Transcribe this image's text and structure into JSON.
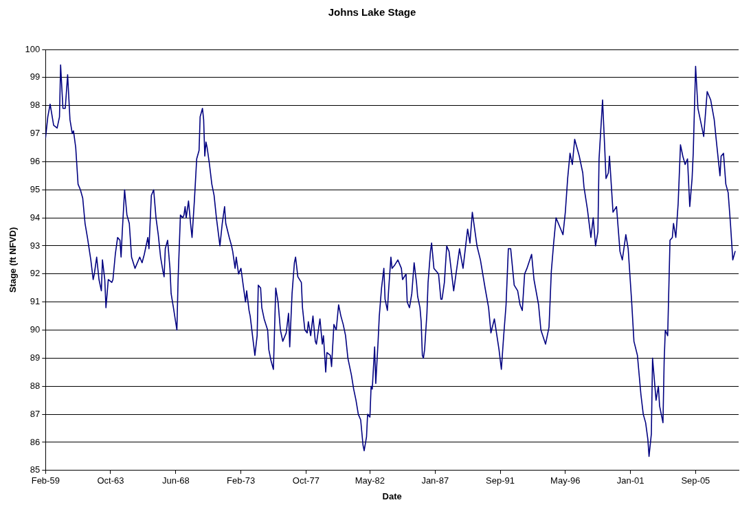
{
  "chart_data": {
    "type": "line",
    "title": "Johns Lake Stage",
    "xlabel": "Date",
    "ylabel": "Stage (ft NFVD)",
    "grid": "y",
    "legend": false,
    "marker": "none",
    "line_style": "solid",
    "xlim": [
      "1959-02",
      "2008-10"
    ],
    "xticks": [
      {
        "value": "1959-02",
        "label": "Feb-59"
      },
      {
        "value": "1963-10",
        "label": "Oct-63"
      },
      {
        "value": "1968-06",
        "label": "Jun-68"
      },
      {
        "value": "1973-02",
        "label": "Feb-73"
      },
      {
        "value": "1977-10",
        "label": "Oct-77"
      },
      {
        "value": "1982-05",
        "label": "May-82"
      },
      {
        "value": "1987-01",
        "label": "Jan-87"
      },
      {
        "value": "1991-09",
        "label": "Sep-91"
      },
      {
        "value": "1996-05",
        "label": "May-96"
      },
      {
        "value": "2001-01",
        "label": "Jan-01"
      },
      {
        "value": "2005-09",
        "label": "Sep-05"
      }
    ],
    "ylim": [
      85,
      100
    ],
    "yticks": [
      85,
      86,
      87,
      88,
      89,
      90,
      91,
      92,
      93,
      94,
      95,
      96,
      97,
      98,
      99,
      100
    ],
    "series": [
      {
        "color": "#000080",
        "x": [
          "1959-02",
          "1959-04",
          "1959-06",
          "1959-09",
          "1959-12",
          "1960-02",
          "1960-03",
          "1960-05",
          "1960-07",
          "1960-09",
          "1960-11",
          "1961-01",
          "1961-02",
          "1961-04",
          "1961-06",
          "1961-08",
          "1961-10",
          "1961-12",
          "1962-02",
          "1962-05",
          "1962-07",
          "1962-08",
          "1962-10",
          "1962-12",
          "1963-02",
          "1963-03",
          "1963-05",
          "1963-06",
          "1963-08",
          "1963-11",
          "1963-12",
          "1964-02",
          "1964-04",
          "1964-06",
          "1964-07",
          "1964-08",
          "1964-10",
          "1964-12",
          "1965-02",
          "1965-04",
          "1965-07",
          "1965-11",
          "1966-01",
          "1966-03",
          "1966-06",
          "1966-07",
          "1966-09",
          "1966-11",
          "1967-01",
          "1967-03",
          "1967-05",
          "1967-07",
          "1967-08",
          "1967-09",
          "1967-11",
          "1968-01",
          "1968-02",
          "1968-04",
          "1968-07",
          "1968-08",
          "1968-10",
          "1968-12",
          "1969-01",
          "1969-02",
          "1969-03",
          "1969-05",
          "1969-07",
          "1969-08",
          "1969-10",
          "1969-12",
          "1970-02",
          "1970-03",
          "1970-05",
          "1970-06",
          "1970-07",
          "1970-08",
          "1970-09",
          "1970-11",
          "1971-01",
          "1971-03",
          "1971-05",
          "1971-08",
          "1971-10",
          "1971-12",
          "1972-01",
          "1972-04",
          "1972-06",
          "1972-07",
          "1972-09",
          "1972-10",
          "1972-12",
          "1973-02",
          "1973-04",
          "1973-06",
          "1973-07",
          "1973-09",
          "1973-10",
          "1973-12",
          "1974-02",
          "1974-04",
          "1974-05",
          "1974-07",
          "1974-08",
          "1974-10",
          "1975-01",
          "1975-02",
          "1975-04",
          "1975-06",
          "1975-08",
          "1975-10",
          "1975-12",
          "1976-02",
          "1976-05",
          "1976-07",
          "1976-08",
          "1976-10",
          "1976-12",
          "1977-01",
          "1977-03",
          "1977-06",
          "1977-07",
          "1977-09",
          "1977-11",
          "1977-12",
          "1978-02",
          "1978-04",
          "1978-06",
          "1978-07",
          "1978-10",
          "1978-12",
          "1979-01",
          "1979-03",
          "1979-04",
          "1979-07",
          "1979-08",
          "1979-10",
          "1979-12",
          "1980-02",
          "1980-04",
          "1980-06",
          "1980-08",
          "1980-10",
          "1980-11",
          "1981-01",
          "1981-03",
          "1981-05",
          "1981-07",
          "1981-09",
          "1981-11",
          "1981-12",
          "1982-02",
          "1982-03",
          "1982-05",
          "1982-06",
          "1982-07",
          "1982-09",
          "1982-10",
          "1982-12",
          "1983-01",
          "1983-03",
          "1983-05",
          "1983-06",
          "1983-08",
          "1983-09",
          "1983-11",
          "1983-12",
          "1984-02",
          "1984-05",
          "1984-08",
          "1984-09",
          "1984-12",
          "1985-01",
          "1985-03",
          "1985-05",
          "1985-07",
          "1985-09",
          "1985-10",
          "1985-12",
          "1986-01",
          "1986-02",
          "1986-03",
          "1986-04",
          "1986-06",
          "1986-07",
          "1986-09",
          "1986-10",
          "1986-12",
          "1987-04",
          "1987-06",
          "1987-07",
          "1987-09",
          "1987-11",
          "1988-01",
          "1988-05",
          "1988-10",
          "1989-01",
          "1989-05",
          "1989-07",
          "1989-09",
          "1990-01",
          "1990-04",
          "1990-08",
          "1990-11",
          "1991-01",
          "1991-04",
          "1991-08",
          "1991-10",
          "1991-12",
          "1992-02",
          "1992-04",
          "1992-06",
          "1992-09",
          "1992-12",
          "1993-02",
          "1993-04",
          "1993-06",
          "1993-08",
          "1993-12",
          "1994-02",
          "1994-06",
          "1994-08",
          "1994-12",
          "1995-03",
          "1995-05",
          "1995-07",
          "1995-09",
          "1996-01",
          "1996-03",
          "1996-05",
          "1996-07",
          "1996-09",
          "1996-11",
          "1997-01",
          "1997-05",
          "1997-08",
          "1997-09",
          "1997-12",
          "1998-03",
          "1998-05",
          "1998-07",
          "1998-09",
          "1998-10",
          "1999-01",
          "1999-03",
          "1999-04",
          "1999-06",
          "1999-07",
          "1999-10",
          "2000-01",
          "2000-04",
          "2000-06",
          "2000-09",
          "2000-11",
          "2001-02",
          "2001-04",
          "2001-07",
          "2001-10",
          "2001-12",
          "2002-02",
          "2002-04",
          "2002-05",
          "2002-07",
          "2002-08",
          "2002-11",
          "2003-01",
          "2003-02",
          "2003-05",
          "2003-06",
          "2003-07",
          "2003-09",
          "2003-11",
          "2004-01",
          "2004-02",
          "2004-04",
          "2004-06",
          "2004-08",
          "2004-10",
          "2004-12",
          "2005-02",
          "2005-04",
          "2005-06",
          "2005-07",
          "2005-09",
          "2005-11",
          "2006-02",
          "2006-04",
          "2006-07",
          "2006-10",
          "2007-01",
          "2007-03",
          "2007-06",
          "2007-07",
          "2007-09",
          "2007-11",
          "2008-01",
          "2008-03",
          "2008-05",
          "2008-07"
        ],
        "values": [
          96.85,
          97.6,
          98.05,
          97.3,
          97.2,
          97.6,
          99.45,
          97.9,
          97.9,
          99.1,
          97.5,
          97.0,
          97.1,
          96.5,
          95.2,
          95.0,
          94.7,
          93.8,
          93.3,
          92.5,
          91.8,
          92.0,
          92.6,
          91.8,
          91.4,
          92.5,
          91.8,
          90.8,
          91.8,
          91.7,
          91.8,
          92.7,
          93.3,
          93.2,
          92.6,
          93.5,
          95.0,
          94.1,
          93.8,
          92.6,
          92.2,
          92.6,
          92.4,
          92.7,
          93.3,
          92.9,
          94.8,
          95.0,
          94.0,
          93.4,
          92.6,
          92.1,
          91.9,
          92.9,
          93.2,
          92.2,
          91.3,
          90.8,
          90.0,
          91.8,
          94.1,
          94.0,
          94.1,
          94.4,
          94.0,
          94.6,
          93.7,
          93.3,
          94.6,
          96.1,
          96.4,
          97.6,
          97.9,
          97.5,
          96.2,
          96.7,
          96.5,
          95.9,
          95.2,
          94.8,
          94.0,
          93.0,
          93.8,
          94.4,
          93.8,
          93.3,
          93.0,
          92.8,
          92.2,
          92.6,
          92.0,
          92.2,
          91.6,
          91.0,
          91.4,
          90.7,
          90.5,
          89.8,
          89.1,
          89.8,
          91.6,
          91.5,
          90.8,
          90.4,
          90.0,
          89.3,
          88.9,
          88.6,
          91.5,
          91.0,
          90.0,
          89.6,
          89.9,
          90.6,
          89.4,
          91.3,
          92.4,
          92.6,
          91.9,
          91.7,
          90.8,
          90.0,
          89.9,
          90.3,
          89.8,
          90.5,
          89.6,
          89.5,
          90.4,
          89.5,
          89.8,
          88.5,
          89.2,
          89.1,
          88.7,
          90.2,
          90.0,
          90.9,
          90.5,
          90.2,
          89.8,
          89.0,
          88.8,
          88.4,
          87.9,
          87.5,
          87.0,
          86.8,
          85.9,
          85.7,
          86.2,
          87.0,
          86.9,
          88.0,
          87.9,
          89.4,
          88.1,
          89.6,
          90.5,
          91.5,
          92.2,
          91.1,
          90.7,
          91.4,
          92.6,
          92.2,
          92.3,
          92.5,
          92.2,
          91.8,
          92.0,
          91.0,
          90.8,
          91.3,
          92.4,
          91.7,
          91.2,
          90.8,
          90.3,
          89.1,
          89.0,
          89.3,
          90.6,
          91.7,
          92.8,
          93.1,
          92.2,
          92.0,
          91.1,
          91.1,
          91.7,
          93.0,
          92.8,
          91.4,
          92.9,
          92.2,
          93.6,
          93.1,
          94.2,
          93.0,
          92.5,
          91.5,
          90.8,
          89.9,
          90.4,
          89.3,
          88.6,
          89.8,
          90.9,
          92.9,
          92.9,
          91.6,
          91.4,
          90.9,
          90.7,
          92.0,
          92.2,
          92.7,
          91.8,
          90.9,
          90.0,
          89.5,
          90.1,
          92.1,
          93.1,
          94.0,
          93.6,
          93.4,
          94.2,
          95.4,
          96.3,
          95.9,
          96.8,
          96.2,
          95.6,
          95.1,
          94.3,
          93.3,
          94.0,
          93.0,
          93.5,
          96.1,
          98.2,
          96.4,
          95.4,
          95.6,
          96.2,
          94.2,
          94.4,
          92.8,
          92.5,
          93.4,
          92.9,
          91.0,
          89.6,
          89.1,
          87.7,
          87.0,
          86.7,
          86.1,
          85.5,
          86.3,
          89.0,
          87.5,
          88.0,
          87.3,
          86.7,
          88.9,
          90.0,
          89.8,
          93.2,
          93.3,
          93.8,
          93.3,
          94.5,
          96.6,
          96.2,
          95.9,
          96.1,
          94.4,
          95.4,
          96.3,
          99.4,
          97.9,
          97.3,
          96.9,
          98.5,
          98.2,
          97.5,
          96.7,
          95.5,
          96.2,
          96.3,
          95.2,
          94.9,
          93.8,
          92.5,
          92.8
        ]
      }
    ]
  }
}
